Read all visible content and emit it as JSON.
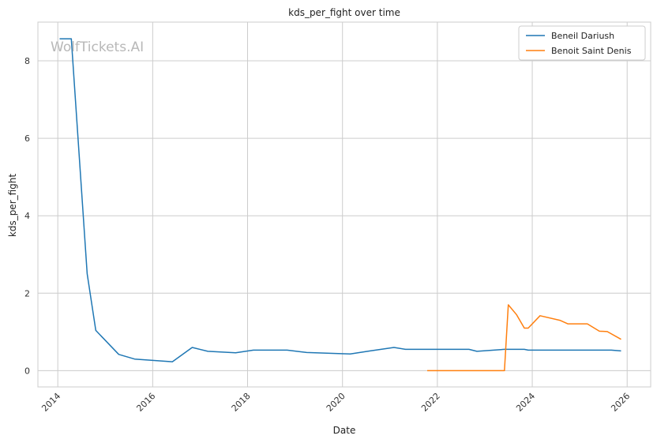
{
  "chart_data": {
    "type": "line",
    "title": "kds_per_fight over time",
    "xlabel": "Date",
    "ylabel": "kds_per_fight",
    "watermark": "WolfTickets.AI",
    "x_ticks": [
      "2014",
      "2016",
      "2018",
      "2020",
      "2022",
      "2024",
      "2026"
    ],
    "y_ticks": [
      "0",
      "2",
      "4",
      "6",
      "8"
    ],
    "xlim": [
      "2013-08-01",
      "2026-07-01"
    ],
    "ylim": [
      -0.42,
      9.0
    ],
    "grid": true,
    "legend_position": "top-right",
    "series": [
      {
        "name": "Beneil Dariush",
        "color": "#1f77b4",
        "points": [
          [
            "2014-01-15",
            8.57
          ],
          [
            "2014-04-15",
            8.57
          ],
          [
            "2014-08-15",
            2.5
          ],
          [
            "2014-10-20",
            1.04
          ],
          [
            "2015-04-15",
            0.42
          ],
          [
            "2015-08-15",
            0.3
          ],
          [
            "2016-06-01",
            0.23
          ],
          [
            "2016-11-01",
            0.6
          ],
          [
            "2017-03-01",
            0.5
          ],
          [
            "2017-10-01",
            0.46
          ],
          [
            "2018-02-15",
            0.53
          ],
          [
            "2018-11-01",
            0.53
          ],
          [
            "2019-04-01",
            0.47
          ],
          [
            "2019-12-01",
            0.44
          ],
          [
            "2020-03-01",
            0.43
          ],
          [
            "2020-08-01",
            0.51
          ],
          [
            "2021-02-01",
            0.6
          ],
          [
            "2021-05-01",
            0.55
          ],
          [
            "2022-09-01",
            0.55
          ],
          [
            "2022-11-01",
            0.5
          ],
          [
            "2023-06-01",
            0.55
          ],
          [
            "2023-11-01",
            0.55
          ],
          [
            "2023-12-01",
            0.53
          ],
          [
            "2025-09-01",
            0.53
          ],
          [
            "2025-11-15",
            0.51
          ]
        ]
      },
      {
        "name": "Benoit Saint Denis",
        "color": "#ff7f0e",
        "points": [
          [
            "2021-10-15",
            0.0
          ],
          [
            "2023-06-01",
            0.0
          ],
          [
            "2023-07-01",
            1.7
          ],
          [
            "2023-09-01",
            1.45
          ],
          [
            "2023-11-01",
            1.1
          ],
          [
            "2023-12-01",
            1.1
          ],
          [
            "2024-03-01",
            1.42
          ],
          [
            "2024-08-01",
            1.3
          ],
          [
            "2024-10-01",
            1.21
          ],
          [
            "2025-03-01",
            1.21
          ],
          [
            "2025-06-01",
            1.02
          ],
          [
            "2025-08-01",
            1.01
          ],
          [
            "2025-11-15",
            0.81
          ]
        ]
      }
    ]
  }
}
